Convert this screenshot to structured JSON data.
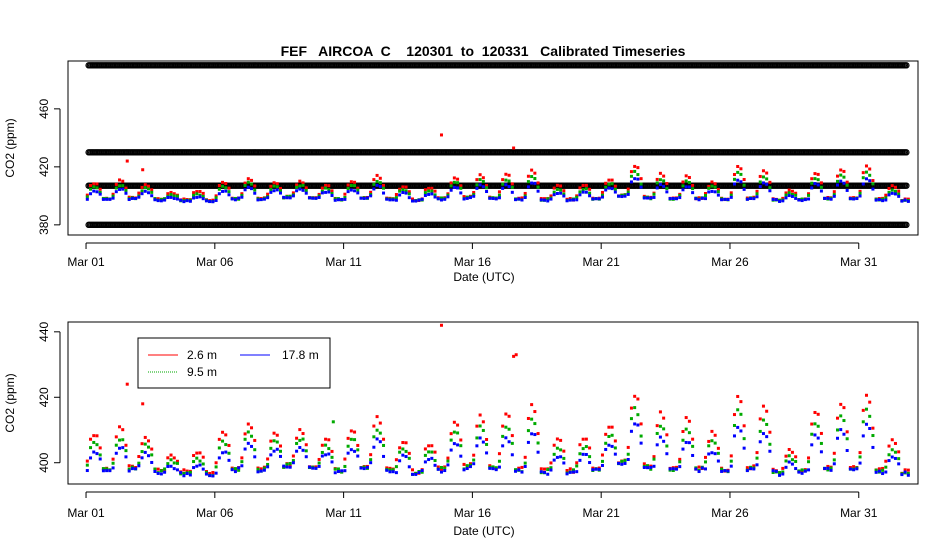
{
  "chart_data": [
    {
      "type": "scatter",
      "title": "FEF   AIRCOA  C    120301  to  120331   Calibrated Timeseries",
      "xlabel": "Date (UTC)",
      "ylabel": "CO2 (ppm)",
      "x_units": "days since Mar 01 00:00 UTC",
      "xlim": [
        -0.7,
        32.3
      ],
      "ylim": [
        373,
        493
      ],
      "x_ticks": [
        {
          "value": 0,
          "label": "Mar 01"
        },
        {
          "value": 5,
          "label": "Mar 06"
        },
        {
          "value": 10,
          "label": "Mar 11"
        },
        {
          "value": 15,
          "label": "Mar 16"
        },
        {
          "value": 20,
          "label": "Mar 21"
        },
        {
          "value": 25,
          "label": "Mar 26"
        },
        {
          "value": 30,
          "label": "Mar 31"
        }
      ],
      "y_ticks": [
        {
          "value": 380,
          "label": "380"
        },
        {
          "value": 420,
          "label": "420"
        },
        {
          "value": 460,
          "label": "460"
        }
      ],
      "calibration_levels": {
        "color": "#000000",
        "marker": "open-circle",
        "x_range": [
          0.1,
          31.9
        ],
        "levels_ppm": [
          380,
          407,
          430,
          490
        ]
      },
      "series_ref": "shared_series",
      "outliers": [
        {
          "series": "2.6 m",
          "x": 1.6,
          "y": 424
        },
        {
          "series": "2.6 m",
          "x": 2.2,
          "y": 418
        },
        {
          "series": "2.6 m",
          "x": 13.8,
          "y": 442
        },
        {
          "series": "2.6 m",
          "x": 16.6,
          "y": 433
        }
      ]
    },
    {
      "type": "scatter",
      "title": "",
      "xlabel": "Date (UTC)",
      "ylabel": "CO2 (ppm)",
      "x_units": "days since Mar 01 00:00 UTC",
      "xlim": [
        -0.7,
        32.3
      ],
      "ylim": [
        393.5,
        443
      ],
      "x_ticks": [
        {
          "value": 0,
          "label": "Mar 01"
        },
        {
          "value": 5,
          "label": "Mar 06"
        },
        {
          "value": 10,
          "label": "Mar 11"
        },
        {
          "value": 15,
          "label": "Mar 16"
        },
        {
          "value": 20,
          "label": "Mar 21"
        },
        {
          "value": 25,
          "label": "Mar 26"
        },
        {
          "value": 30,
          "label": "Mar 31"
        }
      ],
      "y_ticks": [
        {
          "value": 400,
          "label": "400"
        },
        {
          "value": 420,
          "label": "420"
        },
        {
          "value": 440,
          "label": "440"
        }
      ],
      "legend": {
        "position": "top-left",
        "entries": [
          {
            "label": "2.6 m",
            "color": "#ff0000"
          },
          {
            "label": "17.8 m",
            "color": "#0000ff"
          },
          {
            "label": "9.5 m",
            "color": "#00aa00"
          }
        ]
      },
      "series_ref": "shared_series",
      "outliers": [
        {
          "series": "2.6 m",
          "x": 1.6,
          "y": 424
        },
        {
          "series": "2.6 m",
          "x": 2.2,
          "y": 418
        },
        {
          "series": "2.6 m",
          "x": 13.8,
          "y": 442
        },
        {
          "series": "2.6 m",
          "x": 16.6,
          "y": 432.5
        },
        {
          "series": "2.6 m",
          "x": 16.7,
          "y": 433
        },
        {
          "series": "9.5 m",
          "x": 9.6,
          "y": 412.5
        }
      ]
    }
  ],
  "shared_series": {
    "x_start": 0.05,
    "x_end": 31.95,
    "x_step_days": 0.125,
    "series": [
      {
        "name": "2.6 m",
        "color": "#ff0000",
        "offset_ppm": 2.6
      },
      {
        "name": "9.5 m",
        "color": "#00aa00",
        "offset_ppm": 1.3
      },
      {
        "name": "17.8 m",
        "color": "#0000ff",
        "offset_ppm": 0
      }
    ],
    "baseline_knots": [
      [
        0.0,
        397.5
      ],
      [
        1.0,
        397.5
      ],
      [
        2.0,
        398
      ],
      [
        3.0,
        397
      ],
      [
        4.0,
        396.5
      ],
      [
        5.0,
        396
      ],
      [
        6.0,
        398
      ],
      [
        7.0,
        397.5
      ],
      [
        8.0,
        399
      ],
      [
        9.0,
        398
      ],
      [
        10.0,
        397
      ],
      [
        11.0,
        398.5
      ],
      [
        12.0,
        397
      ],
      [
        13.0,
        396.5
      ],
      [
        14.0,
        398
      ],
      [
        15.0,
        398.5
      ],
      [
        16.0,
        398
      ],
      [
        17.0,
        397.5
      ],
      [
        18.0,
        397
      ],
      [
        19.0,
        397
      ],
      [
        20.0,
        398
      ],
      [
        21.0,
        400
      ],
      [
        22.0,
        398
      ],
      [
        23.0,
        397.5
      ],
      [
        24.0,
        398
      ],
      [
        25.0,
        397
      ],
      [
        26.0,
        398
      ],
      [
        27.0,
        396.5
      ],
      [
        28.0,
        397
      ],
      [
        29.0,
        398
      ],
      [
        30.0,
        398
      ],
      [
        31.0,
        397
      ],
      [
        32.0,
        396.5
      ]
    ],
    "daily_amplitude_ppm": [
      6,
      7,
      5,
      2,
      3,
      7,
      8,
      6,
      6,
      5,
      7,
      9,
      5,
      4,
      8,
      9,
      10,
      12,
      5,
      5,
      7,
      13,
      10,
      9,
      6,
      14,
      12,
      3,
      11,
      12,
      14,
      5
    ]
  }
}
